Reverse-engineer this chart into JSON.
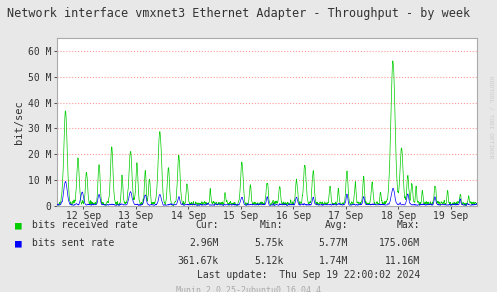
{
  "title": "Network interface vmxnet3 Ethernet Adapter - Throughput - by week",
  "ylabel": "bit/sec",
  "right_label": "RRDTOOL / TOBI OETIKER",
  "x_tick_labels": [
    "12 Sep",
    "13 Sep",
    "14 Sep",
    "15 Sep",
    "16 Sep",
    "17 Sep",
    "18 Sep",
    "19 Sep"
  ],
  "y_ticks": [
    0,
    10000000,
    20000000,
    30000000,
    40000000,
    50000000,
    60000000
  ],
  "y_tick_labels": [
    "0",
    "10 M",
    "20 M",
    "30 M",
    "40 M",
    "50 M",
    "60 M"
  ],
  "ylim": [
    0,
    65000000
  ],
  "bg_color": "#e8e8e8",
  "plot_bg_color": "#FFFFFF",
  "grid_color": "#FF9999",
  "green_color": "#00CC00",
  "blue_color": "#0000FF",
  "title_color": "#333333",
  "axis_color": "#AAAAAA",
  "legend_text_color": "#333333",
  "stats_color": "#333333",
  "munin_color": "#AAAAAA",
  "right_label_color": "#CCCCCC",
  "stats": {
    "headers": [
      "Cur:",
      "Min:",
      "Avg:",
      "Max:"
    ],
    "row1": [
      "2.96M",
      "5.75k",
      "5.77M",
      "175.06M"
    ],
    "row2": [
      "361.67k",
      "5.12k",
      "1.74M",
      "11.16M"
    ],
    "last_update": "Last update:  Thu Sep 19 22:00:02 2024",
    "munin_version": "Munin 2.0.25-2ubuntu0.16.04.4"
  },
  "num_points": 2016
}
